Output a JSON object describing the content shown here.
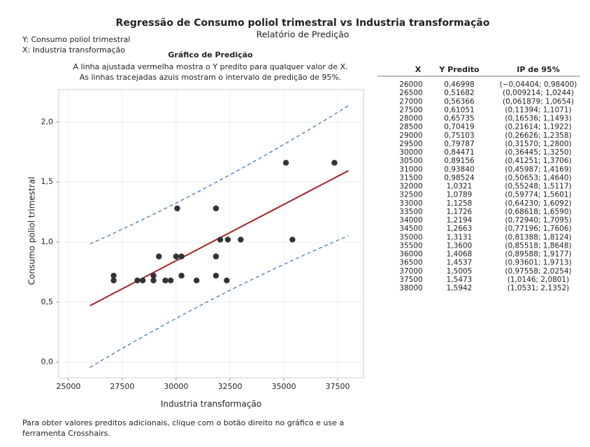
{
  "header": {
    "title": "Regressão de Consumo poliol trimestral vs Industria transformação",
    "subtitle": "Relatório de Predição",
    "y_var": "Y: Consumo poliol trimestral",
    "x_var": "X: Industria transformação"
  },
  "chart_data": {
    "type": "scatter",
    "title": "Gráfico de Predição",
    "subtitle_lines": [
      "A linha ajustada vermelha mostra o Y predito para qualquer valor de X.",
      "As linhas tracejadas azuis mostram o intervalo de predição de 95%."
    ],
    "x_label": "Industria transformação",
    "y_label": "Consumo poliol trimestral",
    "x": [
      27100,
      27100,
      28200,
      28450,
      28950,
      28950,
      29200,
      29500,
      29750,
      30050,
      30000,
      30250,
      30250,
      30950,
      31850,
      31850,
      31850,
      32050,
      32400,
      32350,
      33000,
      35100,
      35400,
      37350
    ],
    "values": [
      0.68,
      0.72,
      0.68,
      0.68,
      0.68,
      0.72,
      0.88,
      0.68,
      0.68,
      1.28,
      0.88,
      0.88,
      0.72,
      0.68,
      1.28,
      0.88,
      0.72,
      1.02,
      1.02,
      0.68,
      1.02,
      1.66,
      1.02,
      1.66
    ],
    "color": "#333333",
    "fit_color": "#a3222a",
    "pi_color": "#2f6fbf",
    "xlim": [
      24550,
      38700
    ],
    "ylim": [
      -0.13,
      2.27
    ],
    "xticks": [
      25000,
      27500,
      30000,
      32500,
      35000,
      37500
    ],
    "yticks": [
      {
        "value": 0,
        "label": "0,0"
      },
      {
        "value": 0.5,
        "label": "0,5"
      },
      {
        "value": 1,
        "label": "1,0"
      },
      {
        "value": 1.5,
        "label": "1,5"
      },
      {
        "value": 2,
        "label": "2,0"
      }
    ],
    "grid": true
  },
  "prediction_table": {
    "columns": [
      "X",
      "Y Predito",
      "IP de 95%"
    ],
    "rows": [
      {
        "x": 26000,
        "fit": {
          "value": 0.46998,
          "label": "0,46998"
        },
        "pi": {
          "lower": -0.04404,
          "upper": 0.984,
          "label": "(−0,04404; 0,98400)"
        }
      },
      {
        "x": 26500,
        "fit": {
          "value": 0.51682,
          "label": "0,51682"
        },
        "pi": {
          "lower": 0.009214,
          "upper": 1.0244,
          "label": "(0,009214; 1,0244)"
        }
      },
      {
        "x": 27000,
        "fit": {
          "value": 0.56366,
          "label": "0,56366"
        },
        "pi": {
          "lower": 0.061879,
          "upper": 1.0654,
          "label": "(0,061879; 1,0654)"
        }
      },
      {
        "x": 27500,
        "fit": {
          "value": 0.61051,
          "label": "0,61051"
        },
        "pi": {
          "lower": 0.11394,
          "upper": 1.1071,
          "label": "(0,11394; 1,1071)"
        }
      },
      {
        "x": 28000,
        "fit": {
          "value": 0.65735,
          "label": "0,65735"
        },
        "pi": {
          "lower": 0.16536,
          "upper": 1.1493,
          "label": "(0,16536; 1,1493)"
        }
      },
      {
        "x": 28500,
        "fit": {
          "value": 0.70419,
          "label": "0,70419"
        },
        "pi": {
          "lower": 0.21614,
          "upper": 1.1922,
          "label": "(0,21614; 1,1922)"
        }
      },
      {
        "x": 29000,
        "fit": {
          "value": 0.75103,
          "label": "0,75103"
        },
        "pi": {
          "lower": 0.26626,
          "upper": 1.2358,
          "label": "(0,26626; 1,2358)"
        }
      },
      {
        "x": 29500,
        "fit": {
          "value": 0.79787,
          "label": "0,79787"
        },
        "pi": {
          "lower": 0.3157,
          "upper": 1.28,
          "label": "(0,31570; 1,2800)"
        }
      },
      {
        "x": 30000,
        "fit": {
          "value": 0.84471,
          "label": "0,84471"
        },
        "pi": {
          "lower": 0.36445,
          "upper": 1.325,
          "label": "(0,36445; 1,3250)"
        }
      },
      {
        "x": 30500,
        "fit": {
          "value": 0.89156,
          "label": "0,89156"
        },
        "pi": {
          "lower": 0.41251,
          "upper": 1.3706,
          "label": "(0,41251; 1,3706)"
        }
      },
      {
        "x": 31000,
        "fit": {
          "value": 0.9384,
          "label": "0,93840"
        },
        "pi": {
          "lower": 0.45987,
          "upper": 1.4169,
          "label": "(0,45987; 1,4169)"
        }
      },
      {
        "x": 31500,
        "fit": {
          "value": 0.98524,
          "label": "0,98524"
        },
        "pi": {
          "lower": 0.50653,
          "upper": 1.464,
          "label": "(0,50653; 1,4640)"
        }
      },
      {
        "x": 32000,
        "fit": {
          "value": 1.0321,
          "label": "1,0321"
        },
        "pi": {
          "lower": 0.55248,
          "upper": 1.5117,
          "label": "(0,55248; 1,5117)"
        }
      },
      {
        "x": 32500,
        "fit": {
          "value": 1.0789,
          "label": "1,0789"
        },
        "pi": {
          "lower": 0.59774,
          "upper": 1.5601,
          "label": "(0,59774; 1,5601)"
        }
      },
      {
        "x": 33000,
        "fit": {
          "value": 1.1258,
          "label": "1,1258"
        },
        "pi": {
          "lower": 0.6423,
          "upper": 1.6092,
          "label": "(0,64230; 1,6092)"
        }
      },
      {
        "x": 33500,
        "fit": {
          "value": 1.1726,
          "label": "1,1726"
        },
        "pi": {
          "lower": 0.68618,
          "upper": 1.659,
          "label": "(0,68618; 1,6590)"
        }
      },
      {
        "x": 34000,
        "fit": {
          "value": 1.2194,
          "label": "1,2194"
        },
        "pi": {
          "lower": 0.7294,
          "upper": 1.7095,
          "label": "(0,72940; 1,7095)"
        }
      },
      {
        "x": 34500,
        "fit": {
          "value": 1.2663,
          "label": "1,2663"
        },
        "pi": {
          "lower": 0.77196,
          "upper": 1.7606,
          "label": "(0,77196; 1,7606)"
        }
      },
      {
        "x": 35000,
        "fit": {
          "value": 1.3131,
          "label": "1,3131"
        },
        "pi": {
          "lower": 0.81388,
          "upper": 1.8124,
          "label": "(0,81388; 1,8124)"
        }
      },
      {
        "x": 35500,
        "fit": {
          "value": 1.36,
          "label": "1,3600"
        },
        "pi": {
          "lower": 0.85518,
          "upper": 1.8648,
          "label": "(0,85518; 1,8648)"
        }
      },
      {
        "x": 36000,
        "fit": {
          "value": 1.4068,
          "label": "1,4068"
        },
        "pi": {
          "lower": 0.89588,
          "upper": 1.9177,
          "label": "(0,89588; 1,9177)"
        }
      },
      {
        "x": 36500,
        "fit": {
          "value": 1.4537,
          "label": "1,4537"
        },
        "pi": {
          "lower": 0.93601,
          "upper": 1.9713,
          "label": "(0,93601; 1,9713)"
        }
      },
      {
        "x": 37000,
        "fit": {
          "value": 1.5005,
          "label": "1,5005"
        },
        "pi": {
          "lower": 0.97558,
          "upper": 2.0254,
          "label": "(0,97558; 2,0254)"
        }
      },
      {
        "x": 37500,
        "fit": {
          "value": 1.5473,
          "label": "1,5473"
        },
        "pi": {
          "lower": 1.0146,
          "upper": 2.0801,
          "label": "(1,0146; 2,0801)"
        }
      },
      {
        "x": 38000,
        "fit": {
          "value": 1.5942,
          "label": "1,5942"
        },
        "pi": {
          "lower": 1.0531,
          "upper": 2.1352,
          "label": "(1,0531; 2,1352)"
        }
      }
    ]
  },
  "footer": [
    "Para obter valores preditos adicionais, clique com o botão direito no gráfico e use a",
    "ferramenta Crosshairs."
  ]
}
